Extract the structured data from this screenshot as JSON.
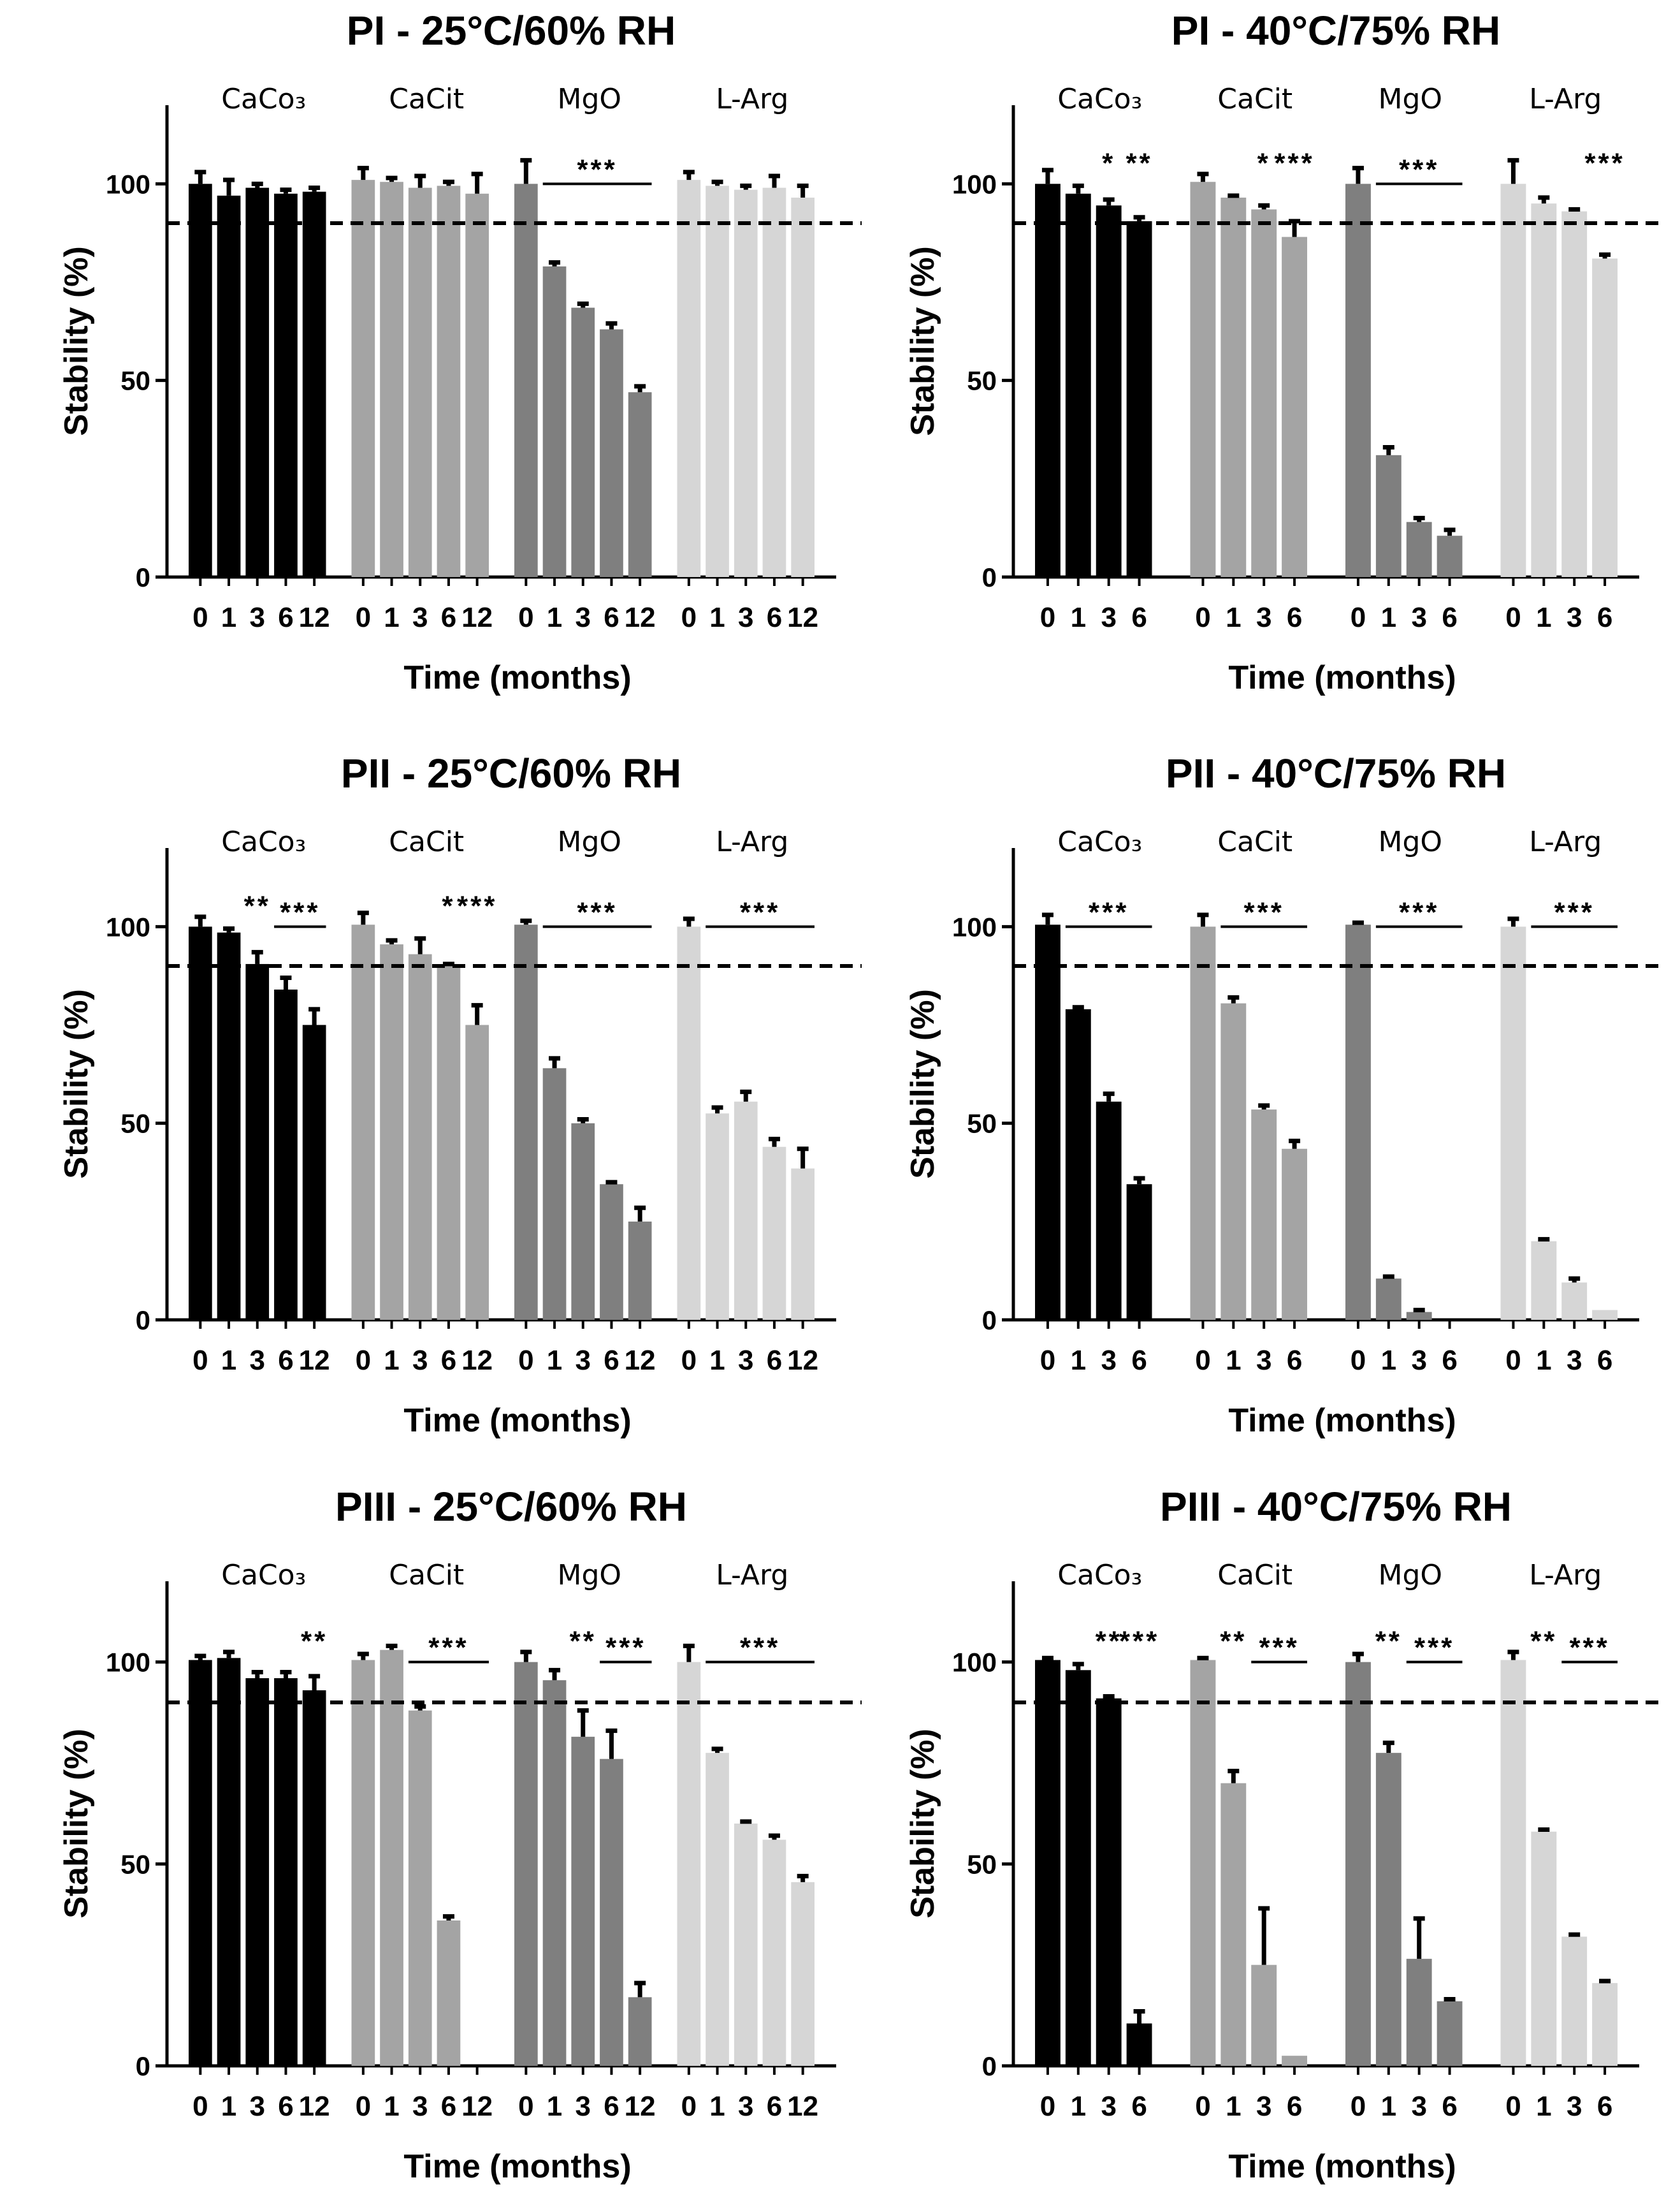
{
  "chart_data": [
    {
      "type": "bar",
      "title": "PI - 25°C/60% RH",
      "xlabel": "Time (months)",
      "ylabel": "Stability (%)",
      "ylim": [
        0,
        120
      ],
      "yticks": [
        0,
        50,
        100
      ],
      "reference_line": 90,
      "groups": [
        {
          "name": "CaCo₃",
          "color": "#000000",
          "x": [
            "0",
            "1",
            "3",
            "6",
            "12"
          ],
          "values": [
            100,
            97,
            99,
            97.5,
            98
          ],
          "errors": [
            3,
            4,
            1,
            1,
            1
          ],
          "sig": []
        },
        {
          "name": "CaCit",
          "color": "#a4a4a4",
          "x": [
            "0",
            "1",
            "3",
            "6",
            "12"
          ],
          "values": [
            101,
            100.5,
            99,
            99.5,
            97.5
          ],
          "errors": [
            3,
            1,
            3,
            1,
            5
          ],
          "sig": []
        },
        {
          "name": "MgO",
          "color": "#7f7f7f",
          "x": [
            "0",
            "1",
            "3",
            "6",
            "12"
          ],
          "values": [
            100,
            79,
            68.5,
            63,
            47
          ],
          "errors": [
            6,
            1,
            1,
            1.5,
            1.5
          ],
          "sig": [
            {
              "text": "***",
              "from": 1,
              "to": 4,
              "line": true
            }
          ]
        },
        {
          "name": "L-Arg",
          "color": "#d6d6d6",
          "x": [
            "0",
            "1",
            "3",
            "6",
            "12"
          ],
          "values": [
            101,
            99.5,
            98.5,
            99,
            96.5
          ],
          "errors": [
            2,
            1,
            1,
            3,
            3
          ],
          "sig": []
        }
      ]
    },
    {
      "type": "bar",
      "title": "PI - 40°C/75% RH",
      "xlabel": "Time (months)",
      "ylabel": "Stability (%)",
      "ylim": [
        0,
        120
      ],
      "yticks": [
        0,
        50,
        100
      ],
      "reference_line": 90,
      "groups": [
        {
          "name": "CaCo₃",
          "color": "#000000",
          "x": [
            "0",
            "1",
            "3",
            "6"
          ],
          "values": [
            100,
            97.5,
            94.5,
            90.5
          ],
          "errors": [
            3.5,
            2,
            1.5,
            1
          ],
          "sig": [
            {
              "text": "*",
              "from": 2,
              "to": 2,
              "line": false
            },
            {
              "text": "**",
              "from": 3,
              "to": 3,
              "line": false
            }
          ]
        },
        {
          "name": "CaCit",
          "color": "#a4a4a4",
          "x": [
            "0",
            "1",
            "3",
            "6"
          ],
          "values": [
            100.5,
            96.5,
            93.5,
            86.5
          ],
          "errors": [
            2,
            0.5,
            1,
            4
          ],
          "sig": [
            {
              "text": "*",
              "from": 2,
              "to": 2,
              "line": false
            },
            {
              "text": "***",
              "from": 3,
              "to": 3,
              "line": false
            }
          ]
        },
        {
          "name": "MgO",
          "color": "#7f7f7f",
          "x": [
            "0",
            "1",
            "3",
            "6"
          ],
          "values": [
            100,
            31,
            14,
            10.5
          ],
          "errors": [
            4,
            2,
            1,
            1.5
          ],
          "sig": [
            {
              "text": "***",
              "from": 1,
              "to": 3,
              "line": true
            }
          ]
        },
        {
          "name": "L-Arg",
          "color": "#d6d6d6",
          "x": [
            "0",
            "1",
            "3",
            "6"
          ],
          "values": [
            100,
            95,
            93,
            81
          ],
          "errors": [
            6,
            1.5,
            0.5,
            1
          ],
          "sig": [
            {
              "text": "***",
              "from": 3,
              "to": 3,
              "line": false
            }
          ]
        }
      ]
    },
    {
      "type": "bar",
      "title": "PII - 25°C/60% RH",
      "xlabel": "Time (months)",
      "ylabel": "Stability (%)",
      "ylim": [
        0,
        120
      ],
      "yticks": [
        0,
        50,
        100
      ],
      "reference_line": 90,
      "groups": [
        {
          "name": "CaCo₃",
          "color": "#000000",
          "x": [
            "0",
            "1",
            "3",
            "6",
            "12"
          ],
          "values": [
            100,
            98.5,
            90.5,
            84,
            75
          ],
          "errors": [
            2.5,
            1,
            3,
            3,
            4
          ],
          "sig": [
            {
              "text": "**",
              "from": 2,
              "to": 2,
              "line": false
            },
            {
              "text": "***",
              "from": 3,
              "to": 4,
              "line": true
            }
          ]
        },
        {
          "name": "CaCit",
          "color": "#a4a4a4",
          "x": [
            "0",
            "1",
            "3",
            "6",
            "12"
          ],
          "values": [
            100.5,
            95.5,
            93,
            90,
            75
          ],
          "errors": [
            3,
            1,
            4,
            0.5,
            5
          ],
          "sig": [
            {
              "text": "*",
              "from": 3,
              "to": 3,
              "line": false
            },
            {
              "text": "***",
              "from": 4,
              "to": 4,
              "line": false
            }
          ]
        },
        {
          "name": "MgO",
          "color": "#7f7f7f",
          "x": [
            "0",
            "1",
            "3",
            "6",
            "12"
          ],
          "values": [
            100.5,
            64,
            50,
            34.5,
            25
          ],
          "errors": [
            1,
            2.5,
            1,
            0.5,
            3.5
          ],
          "sig": [
            {
              "text": "***",
              "from": 1,
              "to": 4,
              "line": true
            }
          ]
        },
        {
          "name": "L-Arg",
          "color": "#d6d6d6",
          "x": [
            "0",
            "1",
            "3",
            "6",
            "12"
          ],
          "values": [
            100,
            52.5,
            55.5,
            44,
            38.5
          ],
          "errors": [
            2,
            1.5,
            2.5,
            2,
            5
          ],
          "sig": [
            {
              "text": "***",
              "from": 1,
              "to": 4,
              "line": true
            }
          ]
        }
      ]
    },
    {
      "type": "bar",
      "title": "PII - 40°C/75% RH",
      "xlabel": "Time (months)",
      "ylabel": "Stability (%)",
      "ylim": [
        0,
        120
      ],
      "yticks": [
        0,
        50,
        100
      ],
      "reference_line": 90,
      "groups": [
        {
          "name": "CaCo₃",
          "color": "#000000",
          "x": [
            "0",
            "1",
            "3",
            "6"
          ],
          "values": [
            100.5,
            79,
            55.5,
            34.5
          ],
          "errors": [
            2.5,
            0.5,
            2,
            1.5
          ],
          "sig": [
            {
              "text": "***",
              "from": 1,
              "to": 3,
              "line": true
            }
          ]
        },
        {
          "name": "CaCit",
          "color": "#a4a4a4",
          "x": [
            "0",
            "1",
            "3",
            "6"
          ],
          "values": [
            100,
            80.5,
            53.5,
            43.5
          ],
          "errors": [
            3,
            1.5,
            1,
            2
          ],
          "sig": [
            {
              "text": "***",
              "from": 1,
              "to": 3,
              "line": true
            }
          ]
        },
        {
          "name": "MgO",
          "color": "#7f7f7f",
          "x": [
            "0",
            "1",
            "3",
            "6"
          ],
          "values": [
            100.5,
            10.5,
            2,
            0
          ],
          "errors": [
            0.5,
            0.5,
            0.5,
            0
          ],
          "sig": [
            {
              "text": "***",
              "from": 1,
              "to": 3,
              "line": true
            }
          ]
        },
        {
          "name": "L-Arg",
          "color": "#d6d6d6",
          "x": [
            "0",
            "1",
            "3",
            "6"
          ],
          "values": [
            100,
            20,
            9.5,
            2.5
          ],
          "errors": [
            2,
            0.5,
            1,
            0
          ],
          "sig": [
            {
              "text": "***",
              "from": 1,
              "to": 3,
              "line": true
            }
          ]
        }
      ]
    },
    {
      "type": "bar",
      "title": "PIII - 25°C/60% RH",
      "xlabel": "Time (months)",
      "ylabel": "Stability (%)",
      "ylim": [
        0,
        120
      ],
      "yticks": [
        0,
        50,
        100
      ],
      "reference_line": 90,
      "groups": [
        {
          "name": "CaCo₃",
          "color": "#000000",
          "x": [
            "0",
            "1",
            "3",
            "6",
            "12"
          ],
          "values": [
            100.5,
            101,
            96,
            96,
            93
          ],
          "errors": [
            1,
            1.5,
            1.5,
            1.5,
            3.5
          ],
          "sig": [
            {
              "text": "**",
              "from": 4,
              "to": 4,
              "line": false
            }
          ]
        },
        {
          "name": "CaCit",
          "color": "#a4a4a4",
          "x": [
            "0",
            "1",
            "3",
            "6",
            "12"
          ],
          "values": [
            100.5,
            103,
            88,
            36,
            0
          ],
          "errors": [
            1.5,
            1,
            1,
            1,
            0
          ],
          "sig": [
            {
              "text": "***",
              "from": 2,
              "to": 4,
              "line": true
            }
          ]
        },
        {
          "name": "MgO",
          "color": "#7f7f7f",
          "x": [
            "0",
            "1",
            "3",
            "6",
            "12"
          ],
          "values": [
            100,
            95.5,
            81.5,
            76,
            17
          ],
          "errors": [
            2.5,
            2.5,
            6.5,
            7,
            3.5
          ],
          "sig": [
            {
              "text": "**",
              "from": 2,
              "to": 2,
              "line": false
            },
            {
              "text": "***",
              "from": 3,
              "to": 4,
              "line": true
            }
          ]
        },
        {
          "name": "L-Arg",
          "color": "#d6d6d6",
          "x": [
            "0",
            "1",
            "3",
            "6",
            "12"
          ],
          "values": [
            100,
            77.5,
            60,
            56,
            45.5
          ],
          "errors": [
            4,
            1,
            0.5,
            1,
            1.5
          ],
          "sig": [
            {
              "text": "***",
              "from": 1,
              "to": 4,
              "line": true
            }
          ]
        }
      ]
    },
    {
      "type": "bar",
      "title": "PIII - 40°C/75% RH",
      "xlabel": "Time (months)",
      "ylabel": "Stability (%)",
      "ylim": [
        0,
        120
      ],
      "yticks": [
        0,
        50,
        100
      ],
      "reference_line": 90,
      "groups": [
        {
          "name": "CaCo₃",
          "color": "#000000",
          "x": [
            "0",
            "1",
            "3",
            "6"
          ],
          "values": [
            100.5,
            98,
            91,
            10.5
          ],
          "errors": [
            0.5,
            1.5,
            0.5,
            3
          ],
          "sig": [
            {
              "text": "**",
              "from": 2,
              "to": 2,
              "line": false
            },
            {
              "text": "***",
              "from": 3,
              "to": 3,
              "line": false
            }
          ]
        },
        {
          "name": "CaCit",
          "color": "#a4a4a4",
          "x": [
            "0",
            "1",
            "3",
            "6"
          ],
          "values": [
            100.5,
            70,
            25,
            2.5
          ],
          "errors": [
            0.5,
            3,
            14,
            0
          ],
          "sig": [
            {
              "text": "**",
              "from": 1,
              "to": 1,
              "line": false
            },
            {
              "text": "***",
              "from": 2,
              "to": 3,
              "line": true
            }
          ]
        },
        {
          "name": "MgO",
          "color": "#7f7f7f",
          "x": [
            "0",
            "1",
            "3",
            "6"
          ],
          "values": [
            100,
            77.5,
            26.5,
            16
          ],
          "errors": [
            2,
            2.5,
            10,
            0.5
          ],
          "sig": [
            {
              "text": "**",
              "from": 1,
              "to": 1,
              "line": false
            },
            {
              "text": "***",
              "from": 2,
              "to": 3,
              "line": true
            }
          ]
        },
        {
          "name": "L-Arg",
          "color": "#d6d6d6",
          "x": [
            "0",
            "1",
            "3",
            "6"
          ],
          "values": [
            100.5,
            58,
            32,
            20.5
          ],
          "errors": [
            2,
            0.5,
            0.5,
            0.5
          ],
          "sig": [
            {
              "text": "**",
              "from": 1,
              "to": 1,
              "line": false
            },
            {
              "text": "***",
              "from": 2,
              "to": 3,
              "line": true
            }
          ]
        }
      ]
    }
  ]
}
